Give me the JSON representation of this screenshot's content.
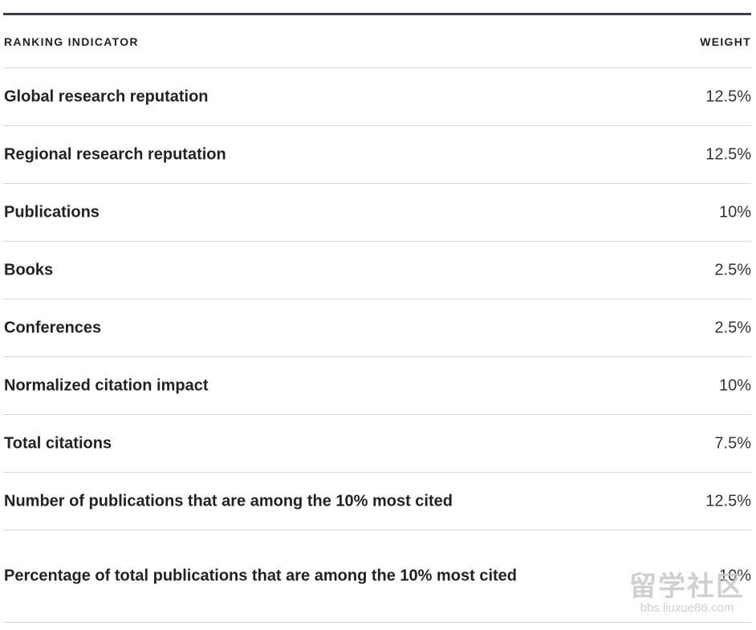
{
  "table": {
    "header": [
      "RANKING INDICATOR",
      "WEIGHT"
    ],
    "rows": [
      [
        "Global research reputation",
        "12.5%"
      ],
      [
        "Regional research reputation",
        "12.5%"
      ],
      [
        "Publications",
        "10%"
      ],
      [
        "Books",
        "2.5%"
      ],
      [
        "Conferences",
        "2.5%"
      ],
      [
        "Normalized citation impact",
        "10%"
      ],
      [
        "Total citations",
        "7.5%"
      ],
      [
        "Number of publications that are among the 10% most cited",
        "12.5%"
      ],
      [
        "Percentage of total publications that are among the 10% most cited",
        "10%"
      ]
    ]
  },
  "watermark": {
    "title": "留学社区",
    "url": "bbs.liuxue86.com"
  }
}
